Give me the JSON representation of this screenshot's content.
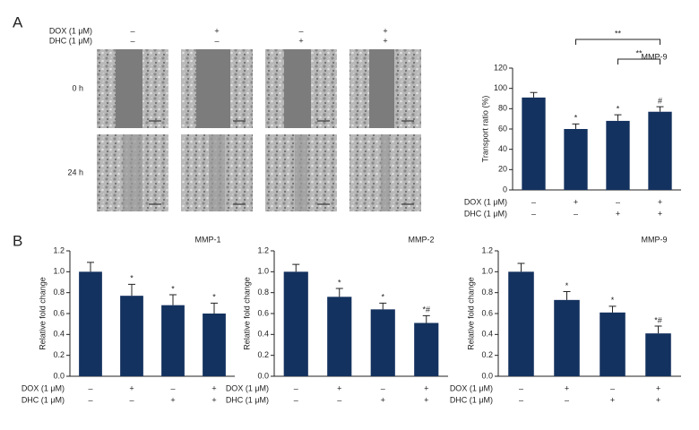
{
  "panel_labels": [
    "A",
    "B"
  ],
  "micrograph_grid": {
    "rows": [
      "0 h",
      "24 h"
    ],
    "conditions": [
      {
        "name": "DOX (1 μM)",
        "signs": [
          "–",
          "+",
          "–",
          "+"
        ]
      },
      {
        "name": "DHC (1 μM)",
        "signs": [
          "–",
          "–",
          "+",
          "+"
        ]
      }
    ]
  },
  "chart_data": [
    {
      "type": "bar",
      "title": "MMP-9",
      "ylabel": "Transport ratio (%)",
      "color": "#14325f",
      "values": [
        91,
        60,
        68,
        77
      ],
      "errors": [
        5,
        5,
        6,
        5
      ],
      "markers": [
        null,
        "*",
        "*",
        "#"
      ],
      "brackets": [
        {
          "from": 1,
          "to": 3,
          "label": "**"
        },
        {
          "from": 2,
          "to": 3,
          "label": "**"
        }
      ],
      "ylim": [
        0,
        120
      ],
      "yticks": [
        0,
        20,
        40,
        60,
        80,
        100,
        120
      ],
      "conditions": [
        {
          "name": "DOX (1 μM)",
          "signs": [
            "–",
            "+",
            "–",
            "+"
          ]
        },
        {
          "name": "DHC (1 μM)",
          "signs": [
            "–",
            "–",
            "+",
            "+"
          ]
        }
      ]
    },
    {
      "type": "bar",
      "title": "MMP-1",
      "ylabel": "Relative fold change",
      "color": "#14325f",
      "values": [
        1.0,
        0.77,
        0.68,
        0.6
      ],
      "errors": [
        0.09,
        0.11,
        0.1,
        0.1
      ],
      "markers": [
        null,
        "*",
        "*",
        "*"
      ],
      "ylim": [
        0,
        1.2
      ],
      "yticks": [
        {
          "value": 0,
          "label": "0.0"
        },
        0.2,
        0.4,
        0.6,
        0.8,
        {
          "value": 1,
          "label": "1.0"
        },
        1.2
      ],
      "conditions": [
        {
          "name": "DOX (1 μM)",
          "signs": [
            "–",
            "+",
            "–",
            "+"
          ]
        },
        {
          "name": "DHC (1 μM)",
          "signs": [
            "–",
            "–",
            "+",
            "+"
          ]
        }
      ]
    },
    {
      "type": "bar",
      "title": "MMP-2",
      "ylabel": "Relative fold change",
      "color": "#14325f",
      "values": [
        1.0,
        0.76,
        0.64,
        0.51
      ],
      "errors": [
        0.07,
        0.08,
        0.06,
        0.07
      ],
      "markers": [
        null,
        "*",
        "*",
        "*#"
      ],
      "ylim": [
        0,
        1.2
      ],
      "yticks": [
        {
          "value": 0,
          "label": "0.0"
        },
        0.2,
        0.4,
        0.6,
        0.8,
        {
          "value": 1,
          "label": "1.0"
        },
        1.2
      ],
      "conditions": [
        {
          "name": "DOX (1 μM)",
          "signs": [
            "–",
            "+",
            "–",
            "+"
          ]
        },
        {
          "name": "DHC (1 μM)",
          "signs": [
            "–",
            "–",
            "+",
            "+"
          ]
        }
      ]
    },
    {
      "type": "bar",
      "title": "MMP-9",
      "ylabel": "Relative fold change",
      "color": "#14325f",
      "values": [
        1.0,
        0.73,
        0.61,
        0.41
      ],
      "errors": [
        0.08,
        0.08,
        0.06,
        0.07
      ],
      "markers": [
        null,
        "*",
        "*",
        "*#"
      ],
      "ylim": [
        0,
        1.2
      ],
      "yticks": [
        {
          "value": 0,
          "label": "0.0"
        },
        0.2,
        0.4,
        0.6,
        0.8,
        {
          "value": 1,
          "label": "1.0"
        },
        1.2
      ],
      "conditions": [
        {
          "name": "DOX (1 μM)",
          "signs": [
            "–",
            "+",
            "–",
            "+"
          ]
        },
        {
          "name": "DHC (1 μM)",
          "signs": [
            "–",
            "–",
            "+",
            "+"
          ]
        }
      ]
    }
  ]
}
